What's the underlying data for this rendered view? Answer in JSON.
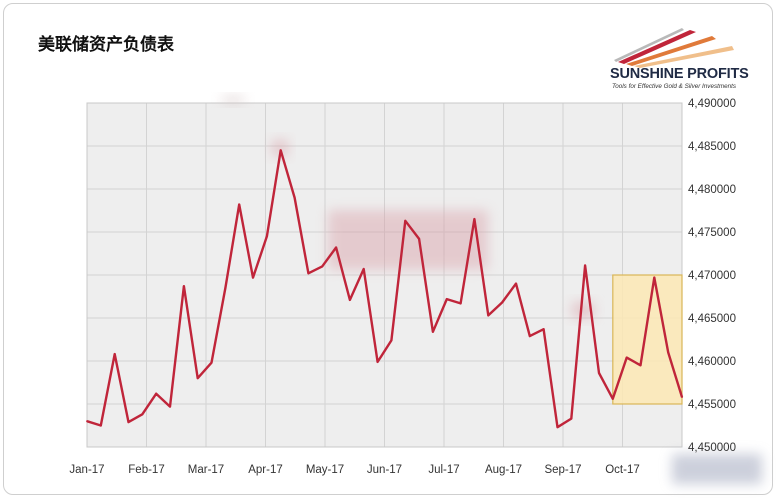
{
  "title": "美联储资产负债表",
  "logo": {
    "brand": "SUNSHINE PROFITS",
    "tagline": "Tools for Effective Gold & Silver Investments"
  },
  "colors": {
    "line": "#c0253a",
    "plot_background": "#eeeeee",
    "highlight_fill": "#fbe8b4",
    "highlight_border": "#d9b657"
  },
  "chart_data": {
    "type": "line",
    "title": "美联储资产负债表",
    "x_tick_labels": [
      "Jan-17",
      "Feb-17",
      "Mar-17",
      "Apr-17",
      "May-17",
      "Jun-17",
      "Jul-17",
      "Aug-17",
      "Sep-17",
      "Oct-17"
    ],
    "y_tick_labels": [
      "4,450000",
      "4,455000",
      "4,460000",
      "4,465000",
      "4,470000",
      "4,475000",
      "4,480000",
      "4,485000",
      "4,490000"
    ],
    "ylim": [
      4450000,
      4490000
    ],
    "y_position": "right",
    "grid": true,
    "series": [
      {
        "values": [
          4453000,
          4452500,
          4460800,
          4452900,
          4453800,
          4456200,
          4454700,
          4468700,
          4458000,
          4459800,
          4468500,
          4478200,
          4469700,
          4474500,
          4484500,
          4479000,
          4470200,
          4471000,
          4473200,
          4467100,
          4470700,
          4459900,
          4462400,
          4476300,
          4474200,
          4463400,
          4467200,
          4466700,
          4476500,
          4465300,
          4466800,
          4469000,
          4462900,
          4463700,
          4452300,
          4453300,
          4471100,
          4458600,
          4455600,
          4460400,
          4459500,
          4469700,
          4461000,
          4455800
        ]
      }
    ],
    "highlight": {
      "x_start_index": 38,
      "x_end_index": 43,
      "y_range": [
        4455000,
        4470000
      ]
    }
  }
}
